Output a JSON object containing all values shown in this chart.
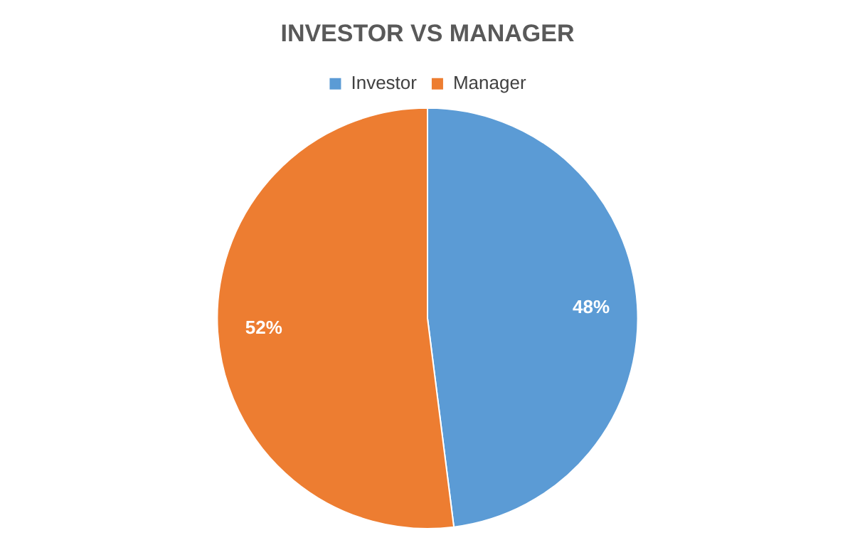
{
  "chart_data": {
    "type": "pie",
    "title": "INVESTOR VS MANAGER",
    "categories": [
      "Investor",
      "Manager"
    ],
    "values": [
      48,
      52
    ],
    "colors": [
      "#5b9bd5",
      "#ed7d31"
    ],
    "value_labels": [
      "48%",
      "52%"
    ],
    "legend": "top"
  }
}
